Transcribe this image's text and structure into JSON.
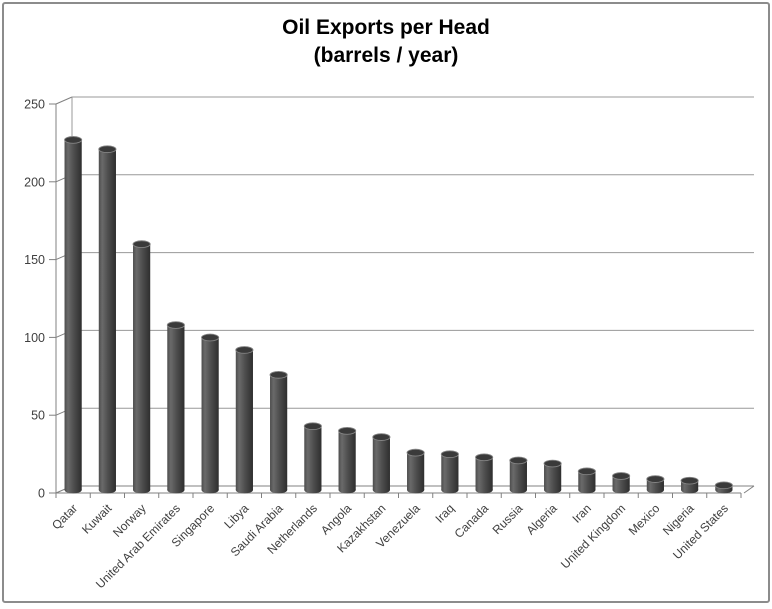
{
  "chart_data": {
    "type": "bar",
    "bar_style": "3d-cylinder",
    "title": "Oil Exports per Head",
    "subtitle": "(barrels / year)",
    "xlabel": "",
    "ylabel": "",
    "ylim": [
      0,
      250
    ],
    "yticks": [
      0,
      50,
      100,
      150,
      200,
      250
    ],
    "grid": true,
    "legend": "none",
    "categories": [
      "Qatar",
      "Kuwait",
      "Norway",
      "United Arab Emirates",
      "Singapore",
      "Libya",
      "Saudi Arabia",
      "Netherlands",
      "Angola",
      "Kazakhstan",
      "Venezuela",
      "Iraq",
      "Canada",
      "Russia",
      "Algeria",
      "Iran",
      "United Kingdom",
      "Mexico",
      "Nigeria",
      "United States"
    ],
    "values": [
      225,
      219,
      158,
      106,
      98,
      90,
      74,
      41,
      38,
      34,
      24,
      23,
      21,
      19,
      17,
      12,
      9,
      7,
      6,
      3
    ],
    "colors": {
      "bar_body": "#4d4d4d",
      "bar_body_light": "#6a6a6a",
      "bar_body_dark": "#2e2e2e",
      "bar_top": "#3a3a3a",
      "bar_top_rim": "#848484",
      "gridline": "#989898",
      "axis": "#808080",
      "tick_label": "#3f3f3f",
      "title": "#000000",
      "background": "#ffffff",
      "figure_border": "#8c8c8c"
    }
  }
}
